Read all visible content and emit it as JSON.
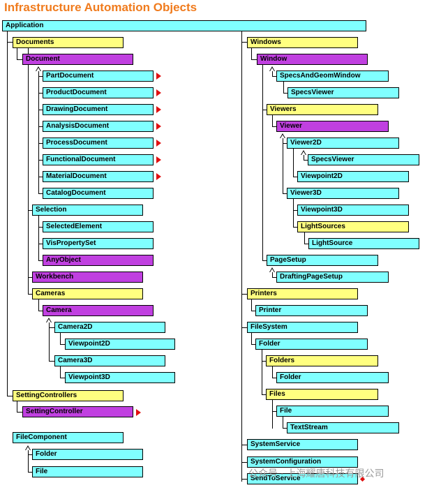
{
  "title": "Infrastructure Automation Objects",
  "watermark": "公众号 · 上海耀唐科技有限公司",
  "colors": {
    "title": "#f07b1d",
    "cyan": "#80ffff",
    "yellow": "#ffff80",
    "purple": "#c040e0",
    "arrow": "#e01010"
  },
  "objects": {
    "application": "Application",
    "documents": "Documents",
    "document": "Document",
    "part_document": "PartDocument",
    "product_document": "ProductDocument",
    "drawing_document": "DrawingDocument",
    "analysis_document": "AnalysisDocument",
    "process_document": "ProcessDocument",
    "functional_document": "FunctionalDocument",
    "material_document": "MaterialDocument",
    "catalog_document": "CatalogDocument",
    "selection": "Selection",
    "selected_element": "SelectedElement",
    "vis_property_set": "VisPropertySet",
    "any_object": "AnyObject",
    "workbench": "Workbench",
    "cameras": "Cameras",
    "camera": "Camera",
    "camera2d": "Camera2D",
    "camera2d_viewpoint": "Viewpoint2D",
    "camera3d": "Camera3D",
    "camera3d_viewpoint": "Viewpoint3D",
    "setting_controllers": "SettingControllers",
    "setting_controller": "SettingController",
    "file_component": "FileComponent",
    "fc_folder": "Folder",
    "fc_file": "File",
    "windows": "Windows",
    "window": "Window",
    "specs_and_geom_window": "SpecsAndGeomWindow",
    "specs_viewer_1": "SpecsViewer",
    "viewers": "Viewers",
    "viewer": "Viewer",
    "viewer2d": "Viewer2D",
    "specs_viewer_2": "SpecsViewer",
    "viewer2d_viewpoint": "Viewpoint2D",
    "viewer3d": "Viewer3D",
    "viewer3d_viewpoint": "Viewpoint3D",
    "light_sources": "LightSources",
    "light_source": "LightSource",
    "page_setup": "PageSetup",
    "drafting_page_setup": "DraftingPageSetup",
    "printers": "Printers",
    "printer": "Printer",
    "file_system": "FileSystem",
    "fs_folder": "Folder",
    "folders": "Folders",
    "fs_sub_folder": "Folder",
    "files": "Files",
    "fs_file": "File",
    "text_stream": "TextStream",
    "system_service": "SystemService",
    "system_configuration": "SystemConfiguration",
    "send_to_service": "SendToService"
  }
}
